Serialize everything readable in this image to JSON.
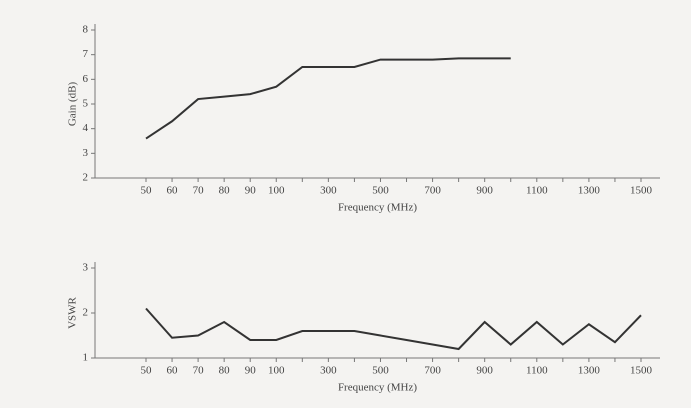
{
  "chart_data": [
    {
      "type": "line",
      "y_label": "Gain (dB)",
      "x_label": "Frequency (MHz)",
      "categories": [
        "50",
        "60",
        "70",
        "80",
        "90",
        "100",
        null,
        "300",
        null,
        "500",
        null,
        "700",
        null,
        "900",
        null,
        "1100",
        null,
        "1300",
        null,
        "1500"
      ],
      "series": [
        {
          "color": "#333333",
          "values": [
            3.6,
            4.3,
            5.2,
            5.3,
            5.4,
            5.7,
            6.5,
            6.5,
            6.5,
            6.8,
            6.8,
            6.8,
            6.85,
            6.85,
            6.85,
            null,
            null,
            null,
            null,
            null
          ]
        }
      ],
      "ylim": [
        2,
        8
      ],
      "yticks": [
        2,
        3,
        4,
        5,
        6,
        7,
        8
      ]
    },
    {
      "type": "line",
      "y_label": "VSWR",
      "x_label": "Frequency (MHz)",
      "categories": [
        "50",
        "60",
        "70",
        "80",
        "90",
        "100",
        null,
        "300",
        null,
        "500",
        null,
        "700",
        null,
        "900",
        null,
        "1100",
        null,
        "1300",
        null,
        "1500"
      ],
      "series": [
        {
          "color": "#333333",
          "values": [
            2.1,
            1.45,
            1.5,
            1.8,
            1.4,
            1.4,
            1.6,
            1.6,
            1.6,
            1.5,
            1.4,
            1.3,
            1.2,
            1.8,
            1.3,
            1.8,
            1.3,
            1.75,
            1.35,
            1.95
          ]
        }
      ],
      "ylim": [
        1,
        3
      ],
      "yticks": [
        1,
        2,
        3
      ]
    }
  ]
}
